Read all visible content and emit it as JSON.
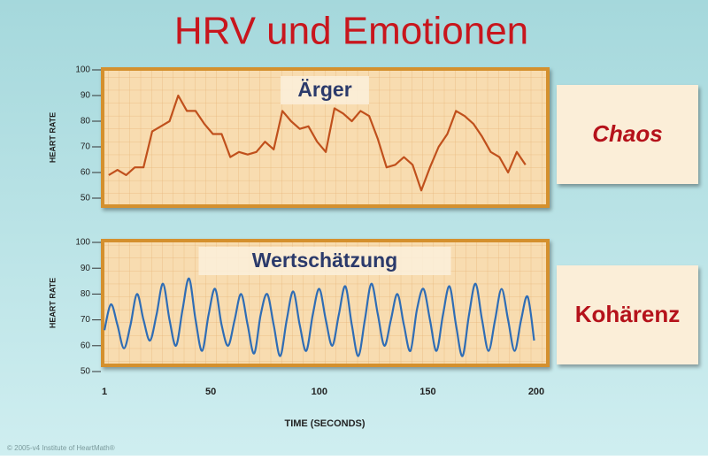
{
  "title": "HRV und Emotionen",
  "copyright": "© 2005-v4 Institute of HeartMath®",
  "chart_data": [
    {
      "type": "line",
      "title": "Ärger",
      "annotation": "Chaos",
      "ylabel": "HEART RATE",
      "color": "#c0501c",
      "grid": true,
      "smooth": false,
      "ylim": [
        50,
        100
      ],
      "yticks": [
        50,
        60,
        70,
        80,
        90,
        100
      ],
      "xlim": [
        1,
        200
      ],
      "series": [
        {
          "x": [
            3,
            7,
            11,
            15,
            19,
            23,
            27,
            31,
            35,
            39,
            43,
            47,
            51,
            55,
            59,
            63,
            67,
            71,
            75,
            79,
            83,
            87,
            91,
            95,
            99,
            103,
            107,
            111,
            115,
            119,
            123,
            127,
            131,
            135,
            139,
            143,
            147,
            151,
            155,
            159,
            163,
            167,
            171,
            175,
            179,
            183,
            187,
            191,
            195
          ],
          "values": [
            59,
            61,
            59,
            62,
            62,
            76,
            78,
            80,
            90,
            84,
            84,
            79,
            75,
            75,
            66,
            68,
            67,
            68,
            72,
            69,
            84,
            80,
            77,
            78,
            72,
            68,
            85,
            83,
            80,
            84,
            82,
            73,
            62,
            63,
            66,
            63,
            53,
            62,
            70,
            75,
            84,
            82,
            79,
            74,
            68,
            66,
            60,
            68,
            63
          ]
        }
      ]
    },
    {
      "type": "line",
      "title": "Wertschätzung",
      "annotation": "Kohärenz",
      "ylabel": "HEART RATE",
      "xlabel": "TIME (SECONDS)",
      "color": "#2f6db5",
      "grid": true,
      "smooth": true,
      "ylim": [
        50,
        100
      ],
      "yticks": [
        50,
        60,
        70,
        80,
        90,
        100
      ],
      "xlim": [
        1,
        200
      ],
      "xticks": [
        1,
        50,
        100,
        150,
        200
      ],
      "series": [
        {
          "x": [
            1,
            4,
            7,
            10,
            13,
            16,
            19,
            22,
            25,
            28,
            31,
            34,
            37,
            40,
            43,
            46,
            49,
            52,
            55,
            58,
            61,
            64,
            67,
            70,
            73,
            76,
            79,
            82,
            85,
            88,
            91,
            94,
            97,
            100,
            103,
            106,
            109,
            112,
            115,
            118,
            121,
            124,
            127,
            130,
            133,
            136,
            139,
            142,
            145,
            148,
            151,
            154,
            157,
            160,
            163,
            166,
            169,
            172,
            175,
            178,
            181,
            184,
            187,
            190,
            193,
            196,
            199
          ],
          "values": [
            66,
            76,
            68,
            59,
            68,
            80,
            70,
            62,
            72,
            84,
            70,
            60,
            74,
            86,
            70,
            58,
            72,
            82,
            68,
            60,
            70,
            80,
            68,
            57,
            72,
            80,
            68,
            56,
            70,
            81,
            68,
            58,
            72,
            82,
            70,
            60,
            72,
            83,
            68,
            56,
            70,
            84,
            72,
            60,
            70,
            80,
            68,
            58,
            74,
            82,
            70,
            58,
            72,
            83,
            68,
            56,
            72,
            84,
            70,
            58,
            70,
            82,
            70,
            58,
            70,
            79,
            62
          ]
        }
      ]
    }
  ]
}
